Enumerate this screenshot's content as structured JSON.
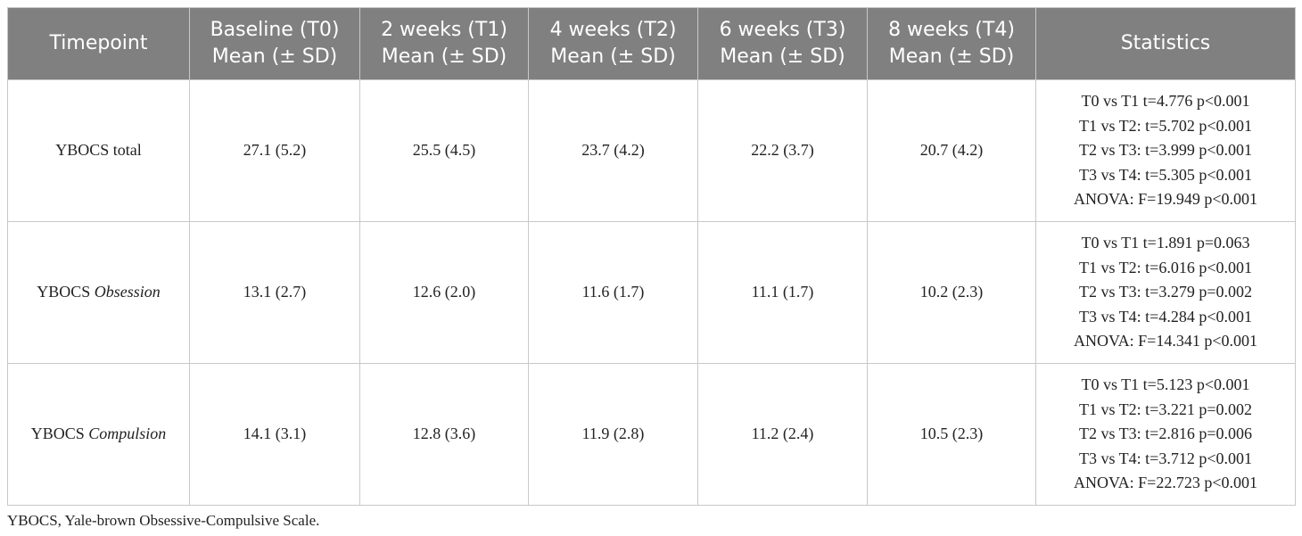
{
  "table": {
    "header": [
      [
        "Timepoint"
      ],
      [
        "Baseline (T0)",
        "Mean (± SD)"
      ],
      [
        "2 weeks (T1)",
        "Mean (± SD)"
      ],
      [
        "4 weeks (T2)",
        "Mean (± SD)"
      ],
      [
        "6 weeks (T3)",
        "Mean (± SD)"
      ],
      [
        "8 weeks (T4)",
        "Mean (± SD)"
      ],
      [
        "Statistics"
      ]
    ],
    "rows": [
      {
        "label": {
          "main": "YBOCS",
          "qualifier": "total",
          "italic": false
        },
        "cells": [
          "27.1 (5.2)",
          "25.5 (4.5)",
          "23.7 (4.2)",
          "22.2 (3.7)",
          "20.7 (4.2)"
        ],
        "statistics": [
          "T0 vs T1 t=4.776 p<0.001",
          "T1 vs T2: t=5.702 p<0.001",
          "T2 vs T3: t=3.999 p<0.001",
          "T3 vs T4: t=5.305 p<0.001",
          "ANOVA: F=19.949 p<0.001"
        ]
      },
      {
        "label": {
          "main": "YBOCS",
          "qualifier": "Obsession",
          "italic": true
        },
        "cells": [
          "13.1 (2.7)",
          "12.6 (2.0)",
          "11.6 (1.7)",
          "11.1 (1.7)",
          "10.2 (2.3)"
        ],
        "statistics": [
          "T0 vs T1 t=1.891 p=0.063",
          "T1 vs T2: t=6.016 p<0.001",
          "T2 vs T3: t=3.279 p=0.002",
          "T3 vs T4: t=4.284 p<0.001",
          "ANOVA: F=14.341 p<0.001"
        ]
      },
      {
        "label": {
          "main": "YBOCS",
          "qualifier": "Compulsion",
          "italic": true
        },
        "cells": [
          "14.1 (3.1)",
          "12.8 (3.6)",
          "11.9 (2.8)",
          "11.2 (2.4)",
          "10.5 (2.3)"
        ],
        "statistics": [
          "T0 vs T1 t=5.123 p<0.001",
          "T1 vs T2: t=3.221 p=0.002",
          "T2 vs T3: t=2.816 p=0.006",
          "T3 vs T4: t=3.712 p<0.001",
          "ANOVA: F=22.723 p<0.001"
        ]
      }
    ]
  },
  "footnote": "YBOCS, Yale-brown Obsessive-Compulsive Scale."
}
